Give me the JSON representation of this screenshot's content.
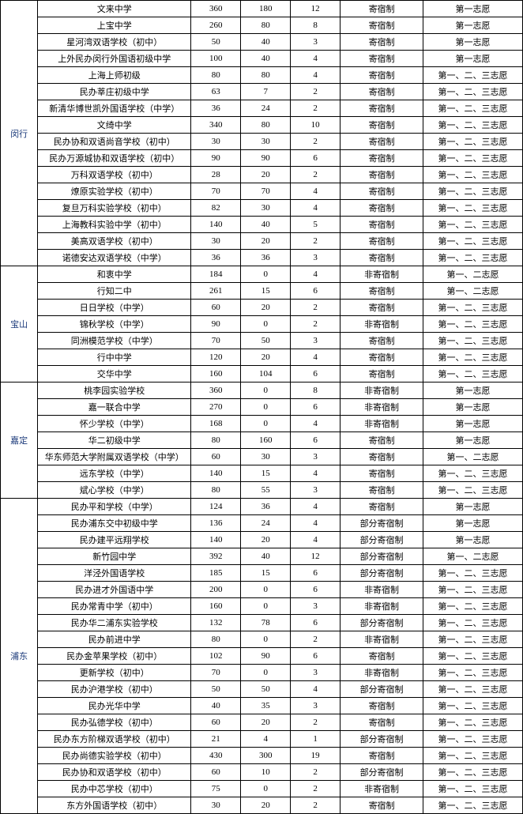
{
  "groups": [
    {
      "district": "闵行",
      "rows": [
        {
          "school": "文来中学",
          "a": 360,
          "b": 180,
          "c": 12,
          "d": "寄宿制",
          "e": "第一志愿"
        },
        {
          "school": "上宝中学",
          "a": 260,
          "b": 80,
          "c": 8,
          "d": "寄宿制",
          "e": "第一志愿"
        },
        {
          "school": "星河湾双语学校（初中）",
          "a": 50,
          "b": 40,
          "c": 3,
          "d": "寄宿制",
          "e": "第一志愿"
        },
        {
          "school": "上外民办闵行外国语初级中学",
          "a": 100,
          "b": 40,
          "c": 4,
          "d": "寄宿制",
          "e": "第一志愿"
        },
        {
          "school": "上海上师初级",
          "a": 80,
          "b": 80,
          "c": 4,
          "d": "寄宿制",
          "e": "第一、二、三志愿"
        },
        {
          "school": "民办莘庄初级中学",
          "a": 63,
          "b": 7,
          "c": 2,
          "d": "寄宿制",
          "e": "第一、二、三志愿"
        },
        {
          "school": "新清华博世凯外国语学校（中学）",
          "a": 36,
          "b": 24,
          "c": 2,
          "d": "寄宿制",
          "e": "第一、二、三志愿"
        },
        {
          "school": "文绮中学",
          "a": 340,
          "b": 80,
          "c": 10,
          "d": "寄宿制",
          "e": "第一、二、三志愿"
        },
        {
          "school": "民办协和双语尚音学校（初中）",
          "a": 30,
          "b": 30,
          "c": 2,
          "d": "寄宿制",
          "e": "第一、二、三志愿"
        },
        {
          "school": "民办万源城协和双语学校（初中）",
          "a": 90,
          "b": 90,
          "c": 6,
          "d": "寄宿制",
          "e": "第一、二、三志愿"
        },
        {
          "school": "万科双语学校（初中）",
          "a": 28,
          "b": 20,
          "c": 2,
          "d": "寄宿制",
          "e": "第一、二、三志愿"
        },
        {
          "school": "燎原实验学校（初中）",
          "a": 70,
          "b": 70,
          "c": 4,
          "d": "寄宿制",
          "e": "第一、二、三志愿"
        },
        {
          "school": "复旦万科实验学校（初中）",
          "a": 82,
          "b": 30,
          "c": 4,
          "d": "寄宿制",
          "e": "第一、二、三志愿"
        },
        {
          "school": "上海教科实验中学（初中）",
          "a": 140,
          "b": 40,
          "c": 5,
          "d": "寄宿制",
          "e": "第一、二、三志愿"
        },
        {
          "school": "美高双语学校（初中）",
          "a": 30,
          "b": 20,
          "c": 2,
          "d": "寄宿制",
          "e": "第一、二、三志愿"
        },
        {
          "school": "诺德安达双语学校（中学）",
          "a": 36,
          "b": 36,
          "c": 3,
          "d": "寄宿制",
          "e": "第一、二、三志愿"
        }
      ]
    },
    {
      "district": "宝山",
      "rows": [
        {
          "school": "和衷中学",
          "a": 184,
          "b": 0,
          "c": 4,
          "d": "非寄宿制",
          "e": "第一、二志愿"
        },
        {
          "school": "行知二中",
          "a": 261,
          "b": 15,
          "c": 6,
          "d": "寄宿制",
          "e": "第一、二志愿"
        },
        {
          "school": "日日学校（中学）",
          "a": 60,
          "b": 20,
          "c": 2,
          "d": "寄宿制",
          "e": "第一、二、三志愿"
        },
        {
          "school": "锦秋学校（中学）",
          "a": 90,
          "b": 0,
          "c": 2,
          "d": "非寄宿制",
          "e": "第一、二、三志愿"
        },
        {
          "school": "同洲模范学校（中学）",
          "a": 70,
          "b": 50,
          "c": 3,
          "d": "寄宿制",
          "e": "第一、二、三志愿"
        },
        {
          "school": "行中中学",
          "a": 120,
          "b": 20,
          "c": 4,
          "d": "寄宿制",
          "e": "第一、二、三志愿"
        },
        {
          "school": "交华中学",
          "a": 160,
          "b": 104,
          "c": 6,
          "d": "寄宿制",
          "e": "第一、二、三志愿"
        }
      ]
    },
    {
      "district": "嘉定",
      "rows": [
        {
          "school": "桃李园实验学校",
          "a": 360,
          "b": 0,
          "c": 8,
          "d": "非寄宿制",
          "e": "第一志愿"
        },
        {
          "school": "嘉一联合中学",
          "a": 270,
          "b": 0,
          "c": 6,
          "d": "非寄宿制",
          "e": "第一志愿"
        },
        {
          "school": "怀少学校（中学）",
          "a": 168,
          "b": 0,
          "c": 4,
          "d": "非寄宿制",
          "e": "第一志愿"
        },
        {
          "school": "华二初级中学",
          "a": 80,
          "b": 160,
          "c": 6,
          "d": "寄宿制",
          "e": "第一志愿"
        },
        {
          "school": "华东师范大学附属双语学校（中学）",
          "a": 60,
          "b": 30,
          "c": 3,
          "d": "寄宿制",
          "e": "第一、二志愿"
        },
        {
          "school": "远东学校（中学）",
          "a": 140,
          "b": 15,
          "c": 4,
          "d": "寄宿制",
          "e": "第一、二、三志愿"
        },
        {
          "school": "斌心学校（中学）",
          "a": 80,
          "b": 55,
          "c": 3,
          "d": "寄宿制",
          "e": "第一、二、三志愿"
        }
      ]
    },
    {
      "district": "浦东",
      "rows": [
        {
          "school": "民办平和学校（中学）",
          "a": 124,
          "b": 36,
          "c": 4,
          "d": "寄宿制",
          "e": "第一志愿"
        },
        {
          "school": "民办浦东交中初级中学",
          "a": 136,
          "b": 24,
          "c": 4,
          "d": "部分寄宿制",
          "e": "第一志愿"
        },
        {
          "school": "民办建平远翔学校",
          "a": 140,
          "b": 20,
          "c": 4,
          "d": "部分寄宿制",
          "e": "第一志愿"
        },
        {
          "school": "新竹园中学",
          "a": 392,
          "b": 40,
          "c": 12,
          "d": "部分寄宿制",
          "e": "第一、二志愿"
        },
        {
          "school": "洋泾外国语学校",
          "a": 185,
          "b": 15,
          "c": 6,
          "d": "部分寄宿制",
          "e": "第一、二、三志愿"
        },
        {
          "school": "民办进才外国语中学",
          "a": 200,
          "b": 0,
          "c": 6,
          "d": "非寄宿制",
          "e": "第一、二、三志愿"
        },
        {
          "school": "民办常青中学（初中）",
          "a": 160,
          "b": 0,
          "c": 3,
          "d": "非寄宿制",
          "e": "第一、二、三志愿"
        },
        {
          "school": "民办华二浦东实验学校",
          "a": 132,
          "b": 78,
          "c": 6,
          "d": "部分寄宿制",
          "e": "第一、二、三志愿"
        },
        {
          "school": "民办前进中学",
          "a": 80,
          "b": 0,
          "c": 2,
          "d": "非寄宿制",
          "e": "第一、二、三志愿"
        },
        {
          "school": "民办金苹果学校（初中）",
          "a": 102,
          "b": 90,
          "c": 6,
          "d": "寄宿制",
          "e": "第一、二、三志愿"
        },
        {
          "school": "更新学校（初中）",
          "a": 70,
          "b": 0,
          "c": 3,
          "d": "非寄宿制",
          "e": "第一、二、三志愿"
        },
        {
          "school": "民办沪港学校（初中）",
          "a": 50,
          "b": 50,
          "c": 4,
          "d": "部分寄宿制",
          "e": "第一、二、三志愿"
        },
        {
          "school": "民办光华中学",
          "a": 40,
          "b": 35,
          "c": 3,
          "d": "寄宿制",
          "e": "第一、二、三志愿"
        },
        {
          "school": "民办弘德学校（初中）",
          "a": 60,
          "b": 20,
          "c": 2,
          "d": "寄宿制",
          "e": "第一、二、三志愿"
        },
        {
          "school": "民办东方阶梯双语学校（初中）",
          "a": 21,
          "b": 4,
          "c": 1,
          "d": "部分寄宿制",
          "e": "第一、二、三志愿"
        },
        {
          "school": "民办尚德实验学校（初中）",
          "a": 430,
          "b": 300,
          "c": 19,
          "d": "寄宿制",
          "e": "第一、二、三志愿"
        },
        {
          "school": "民办协和双语学校（初中）",
          "a": 60,
          "b": 10,
          "c": 2,
          "d": "部分寄宿制",
          "e": "第一、二、三志愿"
        },
        {
          "school": "民办中芯学校（初中）",
          "a": 75,
          "b": 0,
          "c": 2,
          "d": "非寄宿制",
          "e": "第一、二、三志愿"
        },
        {
          "school": "东方外国语学校（初中）",
          "a": 30,
          "b": 20,
          "c": 2,
          "d": "寄宿制",
          "e": "第一、二、三志愿"
        }
      ]
    }
  ]
}
